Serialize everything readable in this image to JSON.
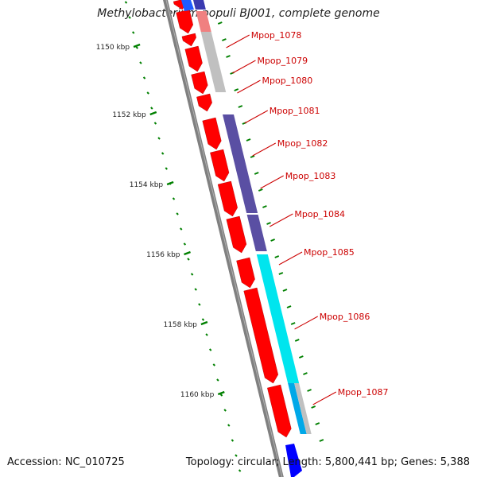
{
  "title": "Methylobacterium populi BJ001, complete genome",
  "accession": "Accession: NC_010725",
  "topology": "Topology: circular; Length: 5,800,441 bp; Genes: 5,388",
  "colors": {
    "backbone": "#808080",
    "forward_gene": "#ff0000",
    "blue_gene": "#0000ff",
    "gene_label": "#cc0000",
    "tick": "#008000",
    "purple_feature": "#5a4fa3",
    "cyan_feature": "#00e5ee",
    "grey_feature": "#c0c0c0"
  },
  "scale_labels": [
    "1150 kbp",
    "1152 kbp",
    "1154 kbp",
    "1156 kbp",
    "1158 kbp",
    "1160 kbp"
  ],
  "genes": [
    {
      "name": "Mpop_1078"
    },
    {
      "name": "Mpop_1079"
    },
    {
      "name": "Mpop_1080"
    },
    {
      "name": "Mpop_1081"
    },
    {
      "name": "Mpop_1082"
    },
    {
      "name": "Mpop_1083"
    },
    {
      "name": "Mpop_1084"
    },
    {
      "name": "Mpop_1085"
    },
    {
      "name": "Mpop_1086"
    },
    {
      "name": "Mpop_1087"
    }
  ]
}
